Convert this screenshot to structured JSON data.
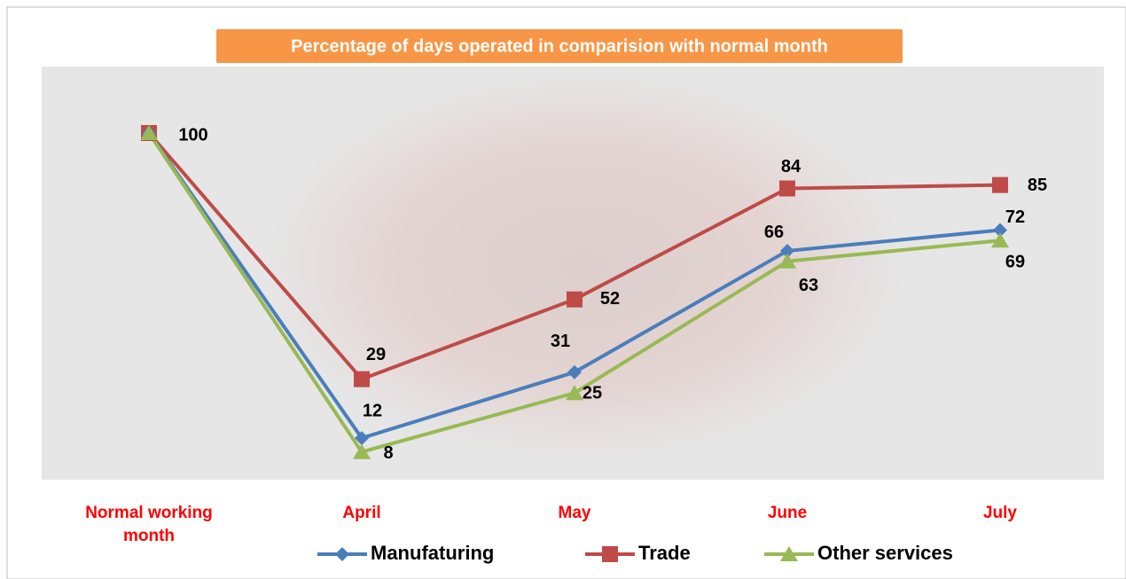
{
  "chart_data": {
    "type": "line",
    "title": "Percentage of days operated in comparision with normal month",
    "categories": [
      "Normal working month",
      "April",
      "May",
      "June",
      "July"
    ],
    "series": [
      {
        "name": "Manufaturing",
        "color": "#4a7ebb",
        "values": [
          100,
          12,
          31,
          66,
          72
        ]
      },
      {
        "name": "Trade",
        "color": "#be4b48",
        "values": [
          100,
          29,
          52,
          84,
          85
        ]
      },
      {
        "name": "Other services",
        "color": "#98b954",
        "values": [
          100,
          8,
          25,
          63,
          69
        ]
      }
    ]
  }
}
